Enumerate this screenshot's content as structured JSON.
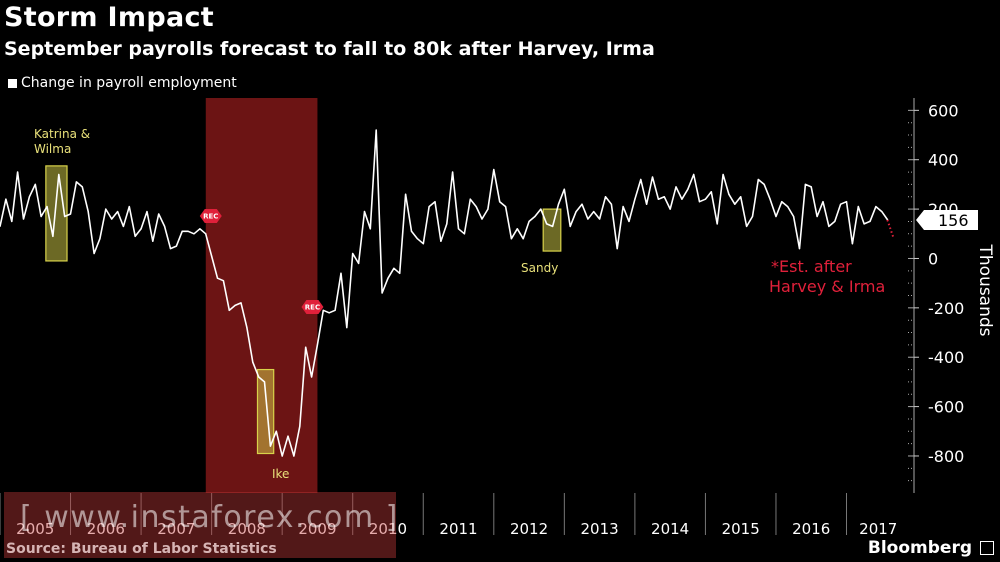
{
  "title": "Storm Impact",
  "subtitle": "September payrolls forecast to fall to 80k after Harvey, Irma",
  "legend_label": "Change in payroll employment",
  "source": "Source: Bureau of Labor Statistics",
  "brand": "Bloomberg",
  "watermark": "[ www.instaforex.com ]",
  "colors": {
    "background": "#000000",
    "line": "#ffffff",
    "recession": "#8b1a1a",
    "storm_box": "#d8d24a",
    "estimate": "#e0203a"
  },
  "chart_data": {
    "type": "line",
    "title": "Storm Impact",
    "subtitle": "September payrolls forecast to fall to 80k after Harvey, Irma",
    "ylabel": "Thousands",
    "ylim": [
      -950,
      650
    ],
    "y_ticks": [
      600,
      400,
      200,
      0,
      -200,
      -400,
      -600,
      -800
    ],
    "x_range": [
      2005.0,
      2017.9
    ],
    "x_ticks": [
      "2005",
      "2006",
      "2007",
      "2008",
      "2009",
      "2010",
      "2011",
      "2012",
      "2013",
      "2014",
      "2015",
      "2016",
      "2017"
    ],
    "last_value_label": "156",
    "series": [
      {
        "name": "Change in payroll employment",
        "start": 2005.0,
        "step_months": 1,
        "values": [
          130,
          240,
          150,
          350,
          160,
          250,
          300,
          170,
          210,
          90,
          340,
          170,
          180,
          310,
          290,
          190,
          20,
          80,
          200,
          160,
          190,
          130,
          210,
          90,
          120,
          190,
          70,
          180,
          130,
          40,
          50,
          110,
          110,
          100,
          120,
          100,
          10,
          -80,
          -90,
          -210,
          -190,
          -180,
          -280,
          -420,
          -480,
          -500,
          -760,
          -700,
          -800,
          -720,
          -800,
          -680,
          -360,
          -480,
          -350,
          -210,
          -220,
          -210,
          -60,
          -280,
          20,
          -20,
          190,
          120,
          520,
          -140,
          -80,
          -40,
          -60,
          260,
          110,
          80,
          60,
          210,
          230,
          70,
          140,
          350,
          120,
          100,
          240,
          210,
          160,
          200,
          360,
          230,
          210,
          80,
          120,
          80,
          150,
          170,
          200,
          140,
          130,
          220,
          280,
          130,
          190,
          220,
          160,
          190,
          160,
          250,
          220,
          40,
          210,
          150,
          240,
          320,
          220,
          330,
          240,
          250,
          200,
          290,
          240,
          280,
          340,
          230,
          240,
          270,
          140,
          340,
          260,
          220,
          250,
          130,
          170,
          320,
          300,
          240,
          170,
          230,
          210,
          170,
          40,
          300,
          290,
          170,
          230,
          130,
          150,
          220,
          230,
          60,
          210,
          140,
          150,
          210,
          190,
          156
        ]
      },
      {
        "name": "Est. after Harvey & Irma",
        "style": "dotted",
        "points": [
          [
            2017.58,
            156
          ],
          [
            2017.67,
            80
          ]
        ]
      }
    ],
    "recession": {
      "label": "REC",
      "start": 2007.917,
      "end": 2009.5
    },
    "storm_boxes": [
      {
        "label": "Katrina & Wilma",
        "x0": 2005.65,
        "x1": 2005.95,
        "y0": -10,
        "y1": 375
      },
      {
        "label": "Ike",
        "x0": 2008.65,
        "x1": 2008.88,
        "y0": -790,
        "y1": -450
      },
      {
        "label": "Sandy",
        "x0": 2012.7,
        "x1": 2012.95,
        "y0": 30,
        "y1": 200
      }
    ],
    "annotations": [
      "*Est. after",
      "Harvey & Irma"
    ]
  }
}
